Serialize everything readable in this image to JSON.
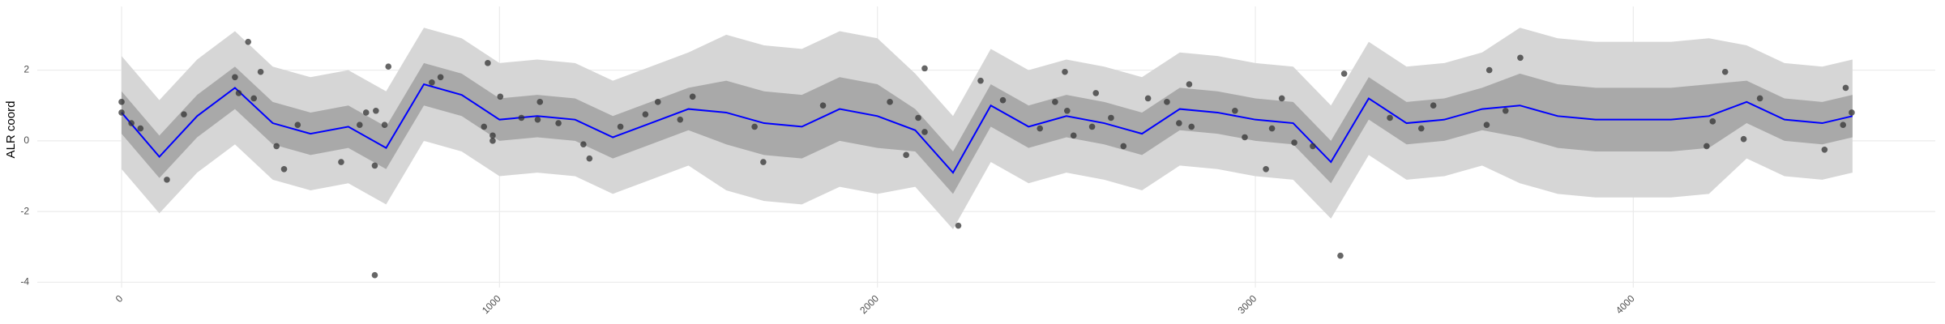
{
  "chart_data": {
    "type": "line",
    "y_label": "ALR coord",
    "xlim": [
      -223,
      4799
    ],
    "ylim": [
      -4.15,
      3.8
    ],
    "xticks": [
      0,
      1000,
      2000,
      3000,
      4000
    ],
    "yticks": [
      -4,
      -2,
      0,
      2
    ],
    "grid": true,
    "x": [
      0,
      100,
      200,
      300,
      400,
      500,
      600,
      700,
      800,
      900,
      1000,
      1100,
      1200,
      1300,
      1400,
      1500,
      1600,
      1700,
      1800,
      1900,
      2000,
      2100,
      2200,
      2300,
      2400,
      2500,
      2600,
      2700,
      2800,
      2900,
      3000,
      3100,
      3200,
      3300,
      3400,
      3500,
      3600,
      3700,
      3800,
      3900,
      4000,
      4100,
      4200,
      4300,
      4400,
      4500,
      4580
    ],
    "bands": [
      {
        "color": "#d6d6d6",
        "lower": [
          -0.8,
          -2.05,
          -0.9,
          -0.1,
          -1.1,
          -1.4,
          -1.2,
          -1.8,
          0,
          -0.3,
          -1.0,
          -0.9,
          -1.0,
          -1.5,
          -1.1,
          -0.7,
          -1.4,
          -1.7,
          -1.8,
          -1.3,
          -1.5,
          -1.3,
          -2.5,
          -0.6,
          -1.2,
          -0.9,
          -1.1,
          -1.4,
          -0.7,
          -0.8,
          -1.0,
          -1.1,
          -2.2,
          -0.4,
          -1.1,
          -1.0,
          -0.7,
          -1.2,
          -1.5,
          -1.6,
          -1.6,
          -1.6,
          -1.5,
          -0.5,
          -1.0,
          -1.1,
          -0.9
        ],
        "upper": [
          2.4,
          1.15,
          2.3,
          3.1,
          2.1,
          1.8,
          2.0,
          1.4,
          3.2,
          2.9,
          2.2,
          2.3,
          2.2,
          1.7,
          2.1,
          2.5,
          3.0,
          2.7,
          2.6,
          3.1,
          2.9,
          1.9,
          0.7,
          2.6,
          2.0,
          2.3,
          2.1,
          1.8,
          2.5,
          2.4,
          2.2,
          2.1,
          1.0,
          2.8,
          2.1,
          2.2,
          2.5,
          3.2,
          2.9,
          2.8,
          2.8,
          2.8,
          2.9,
          2.7,
          2.2,
          2.1,
          2.3
        ]
      },
      {
        "color": "#a9a9a9",
        "lower": [
          0.2,
          -1.05,
          0.1,
          0.9,
          -0.1,
          -0.4,
          -0.2,
          -0.8,
          1.0,
          0.7,
          0,
          0.1,
          0,
          -0.5,
          -0.1,
          0.3,
          -0.1,
          -0.4,
          -0.5,
          0,
          -0.2,
          -0.3,
          -1.5,
          0.4,
          -0.2,
          0.1,
          -0.1,
          -0.4,
          0.3,
          0.2,
          0,
          -0.1,
          -1.2,
          0.6,
          -0.1,
          0,
          0.3,
          0.1,
          -0.2,
          -0.3,
          -0.3,
          -0.3,
          -0.2,
          0.5,
          0,
          -0.1,
          0.1
        ],
        "upper": [
          1.4,
          0.15,
          1.3,
          2.1,
          1.1,
          0.8,
          1.0,
          0.4,
          2.2,
          1.9,
          1.2,
          1.3,
          1.2,
          0.7,
          1.1,
          1.5,
          1.7,
          1.4,
          1.3,
          1.8,
          1.6,
          0.9,
          -0.3,
          1.6,
          1.0,
          1.3,
          1.1,
          0.8,
          1.5,
          1.4,
          1.2,
          1.1,
          0,
          1.8,
          1.1,
          1.2,
          1.5,
          1.9,
          1.6,
          1.5,
          1.5,
          1.5,
          1.6,
          1.7,
          1.2,
          1.1,
          1.3
        ]
      }
    ],
    "line": {
      "color": "#0000ff",
      "values": [
        0.8,
        -0.45,
        0.7,
        1.5,
        0.5,
        0.2,
        0.4,
        -0.2,
        1.6,
        1.3,
        0.6,
        0.7,
        0.6,
        0.1,
        0.5,
        0.9,
        0.8,
        0.5,
        0.4,
        0.9,
        0.7,
        0.3,
        -0.9,
        1.0,
        0.4,
        0.7,
        0.5,
        0.2,
        0.9,
        0.8,
        0.6,
        0.5,
        -0.6,
        1.2,
        0.5,
        0.6,
        0.9,
        1.0,
        0.7,
        0.6,
        0.6,
        0.6,
        0.7,
        1.1,
        0.6,
        0.5,
        0.7
      ]
    },
    "points": {
      "color": "#333333",
      "x": [
        0,
        0,
        26,
        50,
        120,
        165,
        300,
        310,
        335,
        368,
        350,
        410,
        430,
        466,
        581,
        630,
        647,
        670,
        670,
        673,
        696,
        706,
        821,
        844,
        959,
        969,
        982,
        982,
        1002,
        1058,
        1101,
        1107,
        1156,
        1222,
        1238,
        1320,
        1386,
        1419,
        1478,
        1511,
        1675,
        1698,
        1856,
        2033,
        2076,
        2108,
        2125,
        2125,
        2214,
        2273,
        2332,
        2430,
        2470,
        2496,
        2502,
        2519,
        2568,
        2578,
        2618,
        2651,
        2716,
        2766,
        2798,
        2825,
        2831,
        2946,
        2972,
        3028,
        3044,
        3070,
        3103,
        3152,
        3225,
        3235,
        3356,
        3439,
        3471,
        3612,
        3619,
        3662,
        3701,
        4194,
        4210,
        4243,
        4292,
        4335,
        4506,
        4555,
        4562,
        4578
      ],
      "y": [
        1.1,
        0.8,
        0.5,
        0.35,
        -1.1,
        0.75,
        1.8,
        1.35,
        2.8,
        1.95,
        1.2,
        -0.15,
        -0.8,
        0.45,
        -0.6,
        0.45,
        0.8,
        -0.7,
        -3.8,
        0.85,
        0.45,
        2.1,
        1.65,
        1.8,
        0.4,
        2.2,
        0,
        0.15,
        1.25,
        0.65,
        0.6,
        1.1,
        0.5,
        -0.1,
        -0.5,
        0.4,
        0.75,
        1.1,
        0.6,
        1.25,
        0.4,
        -0.6,
        1,
        1.1,
        -0.4,
        0.65,
        2.05,
        0.25,
        -2.4,
        1.7,
        1.15,
        0.35,
        1.1,
        1.95,
        0.85,
        0.15,
        0.4,
        1.35,
        0.65,
        -0.15,
        1.2,
        1.1,
        0.5,
        1.6,
        0.4,
        0.85,
        0.1,
        -0.8,
        0.35,
        1.2,
        -0.05,
        -0.15,
        -3.25,
        1.9,
        0.65,
        0.35,
        1,
        0.45,
        2,
        0.85,
        2.35,
        -0.15,
        0.55,
        1.95,
        0.05,
        1.2,
        -0.25,
        0.45,
        1.5,
        0.8
      ]
    }
  }
}
